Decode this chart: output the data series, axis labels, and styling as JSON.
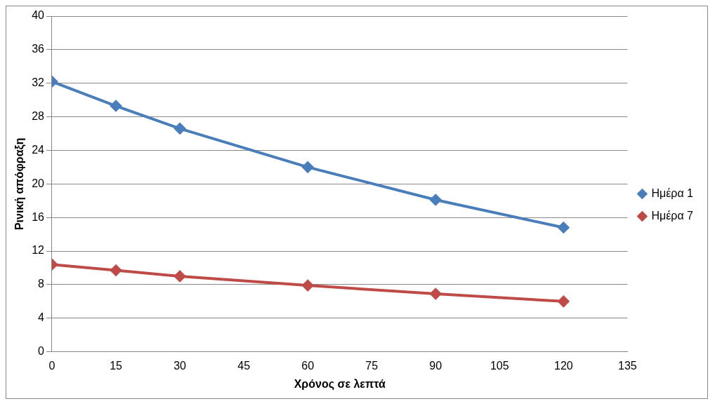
{
  "chart_data": {
    "type": "line",
    "xlabel": "Χρόνος σε λεπτά",
    "ylabel": "Ρινική απόφραξη",
    "x": [
      0,
      15,
      30,
      60,
      90,
      120
    ],
    "series": [
      {
        "name": "Ημέρα 1",
        "color": "#4a7ebb",
        "values": [
          32.2,
          29.3,
          26.6,
          22.0,
          18.1,
          14.8
        ]
      },
      {
        "name": "Ημέρα 7",
        "color": "#be4b48",
        "values": [
          10.4,
          9.7,
          9.0,
          7.9,
          6.9,
          6.0
        ]
      }
    ],
    "xlim": [
      0,
      135
    ],
    "xticks": [
      0,
      15,
      30,
      45,
      60,
      75,
      90,
      105,
      120,
      135
    ],
    "ylim": [
      0,
      40
    ],
    "yticks": [
      0,
      4,
      8,
      12,
      16,
      20,
      24,
      28,
      32,
      36,
      40
    ],
    "grid": "y",
    "legend": "right",
    "marker": "diamond",
    "line_style": "solid"
  }
}
